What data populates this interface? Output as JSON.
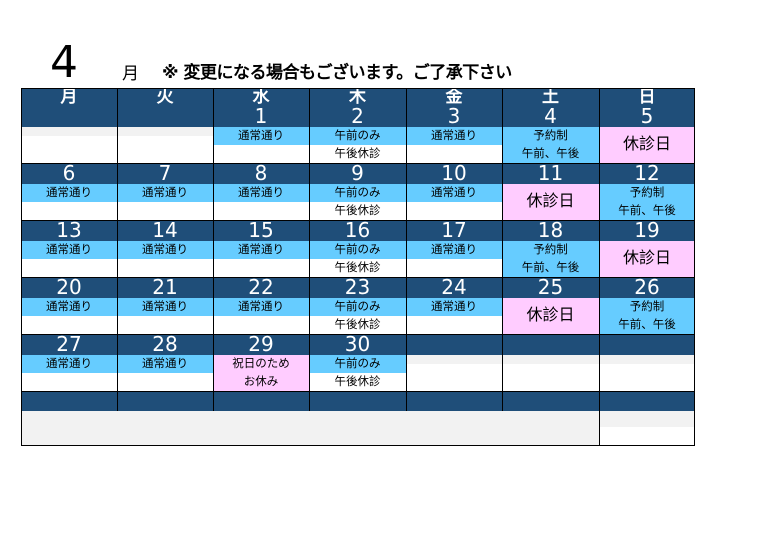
{
  "header": {
    "month_number": "4",
    "month_char": "月",
    "notice": "※ 変更になる場合もございます。ご了承下さい"
  },
  "weekdays": [
    "月",
    "火",
    "水",
    "木",
    "金",
    "土",
    "日"
  ],
  "weeks": [
    {
      "days": [
        "",
        "",
        "1",
        "2",
        "3",
        "4",
        "5"
      ],
      "cells": [
        {
          "type": "empty"
        },
        {
          "type": "empty"
        },
        {
          "type": "normal",
          "text": "通常通り"
        },
        {
          "type": "half",
          "top": "午前のみ",
          "bottom": "午後休診"
        },
        {
          "type": "normal",
          "text": "通常通り"
        },
        {
          "type": "reserve",
          "top": "予約制",
          "bottom": "午前、午後"
        },
        {
          "type": "closed",
          "text": "休診日"
        }
      ]
    },
    {
      "days": [
        "6",
        "7",
        "8",
        "9",
        "10",
        "11",
        "12"
      ],
      "cells": [
        {
          "type": "normal",
          "text": "通常通り"
        },
        {
          "type": "normal",
          "text": "通常通り"
        },
        {
          "type": "normal",
          "text": "通常通り"
        },
        {
          "type": "half",
          "top": "午前のみ",
          "bottom": "午後休診"
        },
        {
          "type": "normal",
          "text": "通常通り"
        },
        {
          "type": "closed",
          "text": "休診日"
        },
        {
          "type": "reserve",
          "top": "予約制",
          "bottom": "午前、午後"
        }
      ]
    },
    {
      "days": [
        "13",
        "14",
        "15",
        "16",
        "17",
        "18",
        "19"
      ],
      "cells": [
        {
          "type": "normal",
          "text": "通常通り"
        },
        {
          "type": "normal",
          "text": "通常通り"
        },
        {
          "type": "normal",
          "text": "通常通り"
        },
        {
          "type": "half",
          "top": "午前のみ",
          "bottom": "午後休診"
        },
        {
          "type": "normal",
          "text": "通常通り"
        },
        {
          "type": "reserve",
          "top": "予約制",
          "bottom": "午前、午後"
        },
        {
          "type": "closed",
          "text": "休診日"
        }
      ]
    },
    {
      "days": [
        "20",
        "21",
        "22",
        "23",
        "24",
        "25",
        "26"
      ],
      "cells": [
        {
          "type": "normal",
          "text": "通常通り"
        },
        {
          "type": "normal",
          "text": "通常通り"
        },
        {
          "type": "normal",
          "text": "通常通り"
        },
        {
          "type": "half",
          "top": "午前のみ",
          "bottom": "午後休診"
        },
        {
          "type": "normal",
          "text": "通常通り"
        },
        {
          "type": "closed",
          "text": "休診日"
        },
        {
          "type": "reserve",
          "top": "予約制",
          "bottom": "午前、午後"
        }
      ]
    },
    {
      "days": [
        "27",
        "28",
        "29",
        "30",
        "",
        "",
        ""
      ],
      "cells": [
        {
          "type": "normal",
          "text": "通常通り"
        },
        {
          "type": "normal",
          "text": "通常通り"
        },
        {
          "type": "holiday",
          "top": "祝日のため",
          "bottom": "お休み"
        },
        {
          "type": "half",
          "top": "午前のみ",
          "bottom": "午後休診"
        },
        {
          "type": "empty"
        },
        {
          "type": "empty"
        },
        {
          "type": "empty"
        }
      ]
    }
  ],
  "colors": {
    "header_blue": "#1f4e79",
    "cyan": "#66ccff",
    "pink": "#ffccff",
    "grey": "#f2f2f2"
  }
}
